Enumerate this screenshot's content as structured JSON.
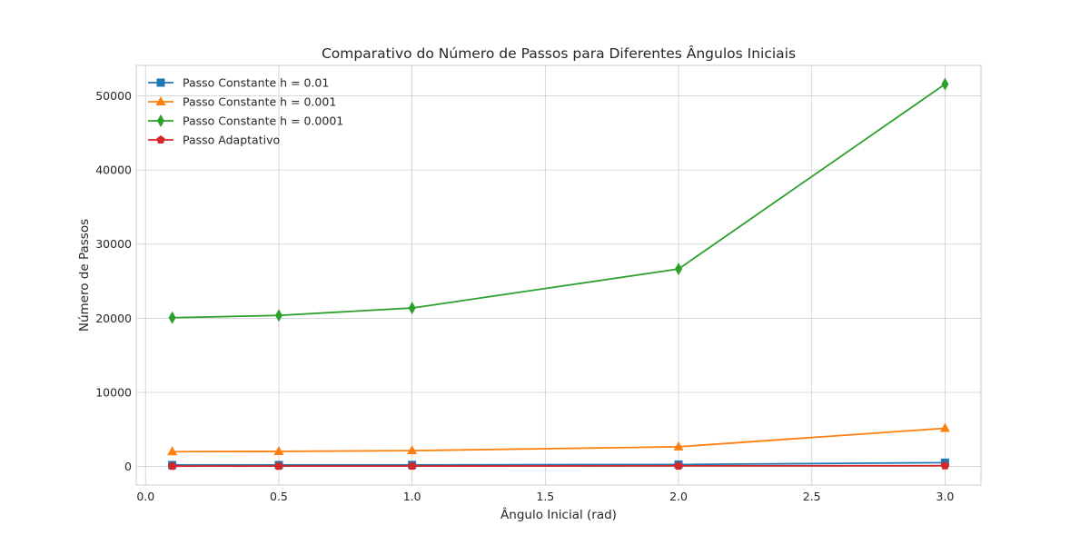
{
  "chart_data": {
    "type": "line",
    "title": "Comparativo do Número de Passos para Diferentes Ângulos Iniciais",
    "xlabel": "Ângulo Inicial (rad)",
    "ylabel": "Número de Passos",
    "xlim": [
      -0.035,
      3.135
    ],
    "ylim": [
      -2500,
      54100
    ],
    "xticks": [
      0.0,
      0.5,
      1.0,
      1.5,
      2.0,
      2.5,
      3.0
    ],
    "xtick_labels": [
      "0.0",
      "0.5",
      "1.0",
      "1.5",
      "2.0",
      "2.5",
      "3.0"
    ],
    "yticks": [
      0,
      10000,
      20000,
      30000,
      40000,
      50000
    ],
    "ytick_labels": [
      "0",
      "10000",
      "20000",
      "30000",
      "40000",
      "50000"
    ],
    "grid": true,
    "legend_position": "upper-left",
    "x": [
      0.1,
      0.5,
      1.0,
      2.0,
      3.0
    ],
    "series": [
      {
        "name": "Passo Constante h = 0.01",
        "color": "#1f77b4",
        "marker": "square",
        "values": [
          200,
          205,
          215,
          270,
          520
        ]
      },
      {
        "name": "Passo Constante h = 0.001",
        "color": "#ff7f0e",
        "marker": "triangle",
        "values": [
          2005,
          2040,
          2140,
          2665,
          5160
        ]
      },
      {
        "name": "Passo Constante h = 0.0001",
        "color": "#2ca02c",
        "marker": "diamond",
        "values": [
          20070,
          20380,
          21380,
          26640,
          51570
        ]
      },
      {
        "name": "Passo Adaptativo",
        "color": "#d62728",
        "marker": "pentagon",
        "values": [
          50,
          55,
          60,
          85,
          110
        ]
      }
    ]
  }
}
